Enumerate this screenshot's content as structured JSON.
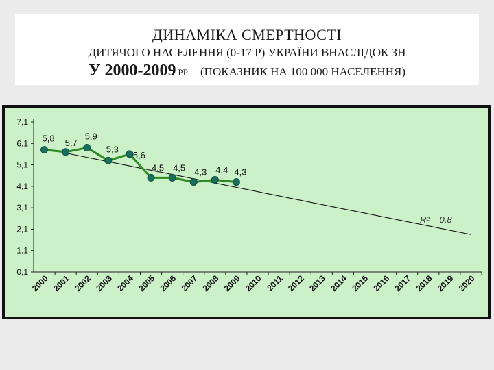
{
  "title": {
    "line1": "ДИНАМІКА СМЕРТНОСТІ",
    "line2": "ДИТЯЧОГО НАСЕЛЕННЯ (0-17 Р) УКРАЇНИ ВНАСЛІДОК ЗН",
    "line3_years": "У 2000-2009",
    "line3_unit": "РР",
    "line3_note": "(ПОКАЗНИК НА 100 000 НАСЕЛЕННЯ)"
  },
  "colors": {
    "plot_bg": "#ccf0c8",
    "series_line": "#2d8a1f",
    "marker": "#1a6e5e",
    "trend": "#111111"
  },
  "chart_data": {
    "type": "line",
    "x": [
      "2000",
      "2001",
      "2002",
      "2003",
      "2004",
      "2005",
      "2006",
      "2007",
      "2008",
      "2009"
    ],
    "categories": [
      "2000",
      "2001",
      "2002",
      "2003",
      "2004",
      "2005",
      "2006",
      "2007",
      "2008",
      "2009",
      "2010",
      "2011",
      "2012",
      "2013",
      "2014",
      "2015",
      "2016",
      "2017",
      "2018",
      "2019",
      "2020"
    ],
    "series": [
      {
        "values": [
          5.8,
          5.7,
          5.9,
          5.3,
          5.6,
          4.5,
          4.5,
          4.3,
          4.4,
          4.3
        ]
      }
    ],
    "data_labels": [
      "5,8",
      "5,7",
      "5,9",
      "5,3",
      "5,6",
      "4,5",
      "4,5",
      "4,3",
      "4,4",
      "4,3"
    ],
    "trendline": {
      "type": "linear",
      "start": [
        2000,
        5.85
      ],
      "end": [
        2020,
        1.85
      ],
      "r2_label": "R² = 0,8"
    },
    "y_ticks": [
      "7,1",
      "6,1",
      "5,1",
      "4,1",
      "3,1",
      "2,1",
      "1,1",
      "0,1"
    ],
    "ylim": [
      0.1,
      7.1
    ],
    "grid": false,
    "legend": "none"
  }
}
